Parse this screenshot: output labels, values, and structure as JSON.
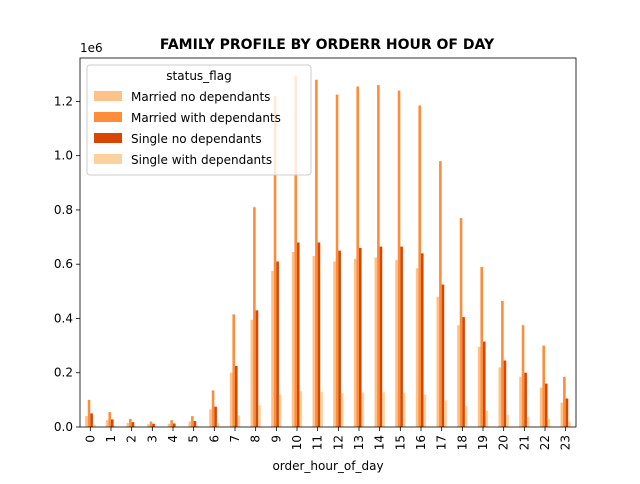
{
  "chart_data": {
    "type": "bar",
    "title": "FAMILY PROFILE BY ORDERR HOUR OF DAY",
    "xlabel": "order_hour_of_day",
    "ylabel": "",
    "y_offset_label": "1e6",
    "ylim": [
      0,
      1.36
    ],
    "y_unit_multiplier": 1000000,
    "yticks": [
      "0.0",
      "0.2",
      "0.4",
      "0.6",
      "0.8",
      "1.0",
      "1.2"
    ],
    "categories": [
      "0",
      "1",
      "2",
      "3",
      "4",
      "5",
      "6",
      "7",
      "8",
      "9",
      "10",
      "11",
      "12",
      "13",
      "14",
      "15",
      "16",
      "17",
      "18",
      "19",
      "20",
      "21",
      "22",
      "23"
    ],
    "legend": {
      "title": "status_flag",
      "placement": "upper left"
    },
    "series": [
      {
        "name": "Married no dependants",
        "color": "#fdc18a",
        "values": [
          0.04,
          0.025,
          0.015,
          0.01,
          0.012,
          0.02,
          0.065,
          0.2,
          0.395,
          0.575,
          0.645,
          0.63,
          0.61,
          0.62,
          0.625,
          0.615,
          0.585,
          0.48,
          0.375,
          0.295,
          0.22,
          0.185,
          0.145,
          0.09
        ]
      },
      {
        "name": "Married with dependants",
        "color": "#fd8c3b",
        "values": [
          0.1,
          0.055,
          0.03,
          0.02,
          0.025,
          0.04,
          0.135,
          0.415,
          0.81,
          1.22,
          1.295,
          1.28,
          1.225,
          1.255,
          1.26,
          1.24,
          1.185,
          0.98,
          0.77,
          0.59,
          0.465,
          0.375,
          0.3,
          0.185
        ]
      },
      {
        "name": "Single no dependants",
        "color": "#d84701",
        "values": [
          0.05,
          0.028,
          0.018,
          0.012,
          0.013,
          0.022,
          0.075,
          0.225,
          0.43,
          0.61,
          0.68,
          0.68,
          0.65,
          0.66,
          0.665,
          0.665,
          0.64,
          0.525,
          0.405,
          0.315,
          0.245,
          0.2,
          0.16,
          0.105
        ]
      },
      {
        "name": "Single with dependants",
        "color": "#fdd09f",
        "values": [
          0.009,
          0.005,
          0.003,
          0.002,
          0.002,
          0.004,
          0.014,
          0.042,
          0.08,
          0.12,
          0.132,
          0.13,
          0.125,
          0.127,
          0.128,
          0.126,
          0.12,
          0.098,
          0.077,
          0.06,
          0.046,
          0.038,
          0.03,
          0.019
        ]
      }
    ]
  }
}
